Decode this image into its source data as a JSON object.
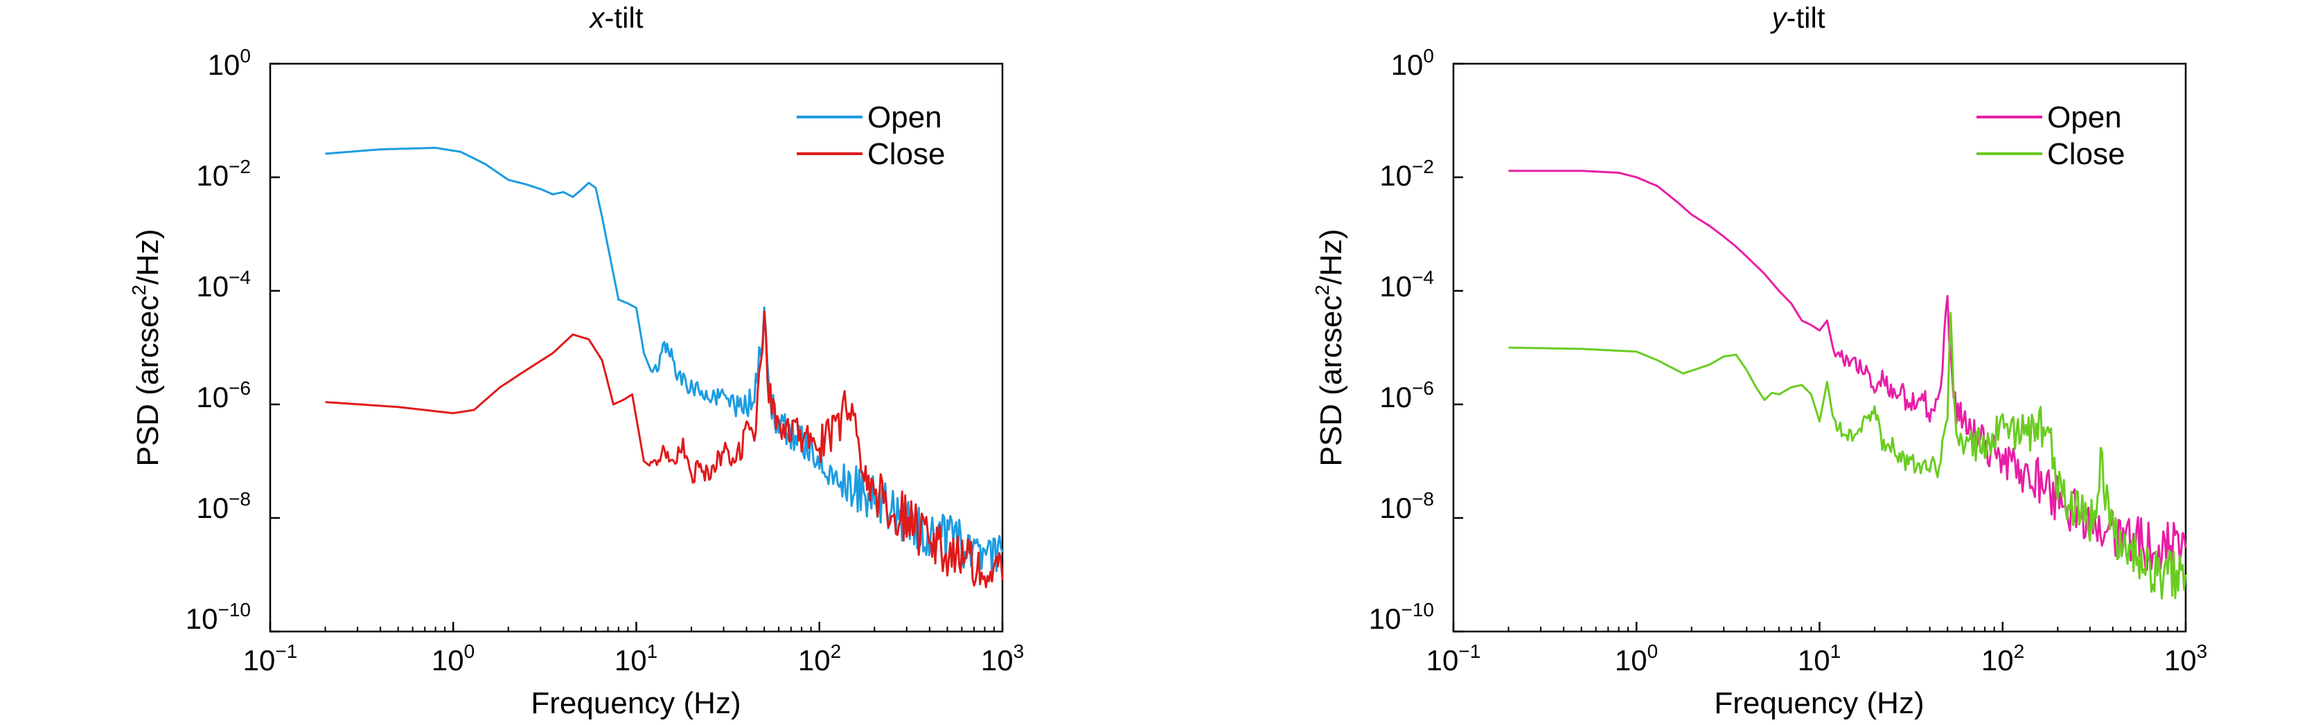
{
  "chart_data": [
    {
      "type": "line",
      "title_var": "x",
      "title_rest": "-tilt",
      "xlabel": "Frequency (Hz)",
      "ylabel_pre": "PSD (arcsec",
      "ylabel_sup": "2",
      "ylabel_post": "/Hz)",
      "xscale": "log",
      "yscale": "log",
      "xlim": [
        0.1,
        1000
      ],
      "ylim": [
        1e-10,
        1
      ],
      "legend_position": "top-right",
      "x_tick_labels": [
        {
          "base": "10",
          "exp": "−1"
        },
        {
          "base": "10",
          "exp": "0"
        },
        {
          "base": "10",
          "exp": "1"
        },
        {
          "base": "10",
          "exp": "2"
        },
        {
          "base": "10",
          "exp": "3"
        }
      ],
      "y_tick_labels": [
        {
          "base": "10",
          "exp": "−10"
        },
        {
          "base": "10",
          "exp": "−8"
        },
        {
          "base": "10",
          "exp": "−6"
        },
        {
          "base": "10",
          "exp": "−4"
        },
        {
          "base": "10",
          "exp": "−2"
        },
        {
          "base": "10",
          "exp": "0"
        }
      ],
      "series": [
        {
          "name": "Open",
          "color": "#1c9ce0",
          "x": [
            0.2,
            0.4,
            0.8,
            1.1,
            1.5,
            2,
            2.5,
            3,
            3.5,
            4,
            4.5,
            5,
            5.5,
            6,
            6.5,
            7,
            8,
            9,
            10,
            11,
            12,
            13,
            14,
            15,
            17,
            20,
            25,
            30,
            35,
            40,
            45,
            50,
            52,
            55,
            60,
            70,
            80,
            100,
            150,
            200,
            300,
            500,
            700,
            1000
          ],
          "y": [
            0.026,
            0.031,
            0.033,
            0.028,
            0.017,
            0.009,
            0.0075,
            0.0062,
            0.005,
            0.0055,
            0.0045,
            0.006,
            0.008,
            0.0065,
            0.002,
            0.0006,
            7e-05,
            6e-05,
            5e-05,
            8e-06,
            4e-06,
            4e-06,
            1e-05,
            1e-05,
            3e-06,
            2e-06,
            1.5e-06,
            1.2e-06,
            1e-06,
            9e-07,
            2e-06,
            4e-05,
            3e-06,
            1e-06,
            4e-07,
            3e-07,
            2e-07,
            1.2e-07,
            4e-08,
            2e-08,
            8e-09,
            4e-09,
            3e-09,
            2.5e-09
          ]
        },
        {
          "name": "Close",
          "color": "#e01a1a",
          "x": [
            0.2,
            0.5,
            1,
            1.3,
            1.8,
            2.5,
            3.5,
            4.5,
            5.5,
            6.5,
            7.5,
            8.5,
            9.5,
            11,
            12,
            14,
            16,
            18,
            20,
            22,
            25,
            30,
            35,
            40,
            45,
            50,
            52,
            55,
            60,
            70,
            80,
            100,
            120,
            140,
            145,
            160,
            200,
            300,
            500,
            700,
            1000
          ],
          "y": [
            1.1e-06,
            9e-07,
            7e-07,
            8e-07,
            2e-06,
            4e-06,
            8e-06,
            1.7e-05,
            1.4e-05,
            6e-06,
            1e-06,
            1.2e-06,
            1.5e-06,
            1e-07,
            8e-08,
            1.5e-07,
            9e-08,
            2e-07,
            5e-08,
            8e-08,
            6e-08,
            1.5e-07,
            1e-07,
            3e-07,
            4e-07,
            4e-05,
            3e-06,
            8e-07,
            5e-07,
            4e-07,
            3e-07,
            2e-07,
            4e-07,
            8e-07,
            1.2e-06,
            2e-07,
            3e-08,
            1e-08,
            2e-09,
            1.5e-09,
            8e-10
          ]
        }
      ]
    },
    {
      "type": "line",
      "title_var": "y",
      "title_rest": "-tilt",
      "xlabel": "Frequency (Hz)",
      "ylabel_pre": "PSD (arcsec",
      "ylabel_sup": "2",
      "ylabel_post": "/Hz)",
      "xscale": "log",
      "yscale": "log",
      "xlim": [
        0.1,
        1000
      ],
      "ylim": [
        1e-10,
        1
      ],
      "legend_position": "top-right",
      "x_tick_labels": [
        {
          "base": "10",
          "exp": "−1"
        },
        {
          "base": "10",
          "exp": "0"
        },
        {
          "base": "10",
          "exp": "1"
        },
        {
          "base": "10",
          "exp": "2"
        },
        {
          "base": "10",
          "exp": "3"
        }
      ],
      "y_tick_labels": [
        {
          "base": "10",
          "exp": "−10"
        },
        {
          "base": "10",
          "exp": "−8"
        },
        {
          "base": "10",
          "exp": "−6"
        },
        {
          "base": "10",
          "exp": "−4"
        },
        {
          "base": "10",
          "exp": "−2"
        },
        {
          "base": "10",
          "exp": "0"
        }
      ],
      "series": [
        {
          "name": "Open",
          "color": "#e81ea6",
          "x": [
            0.2,
            0.5,
            0.8,
            1,
            1.3,
            1.7,
            2,
            2.5,
            3,
            3.5,
            4,
            5,
            6,
            7,
            8,
            9,
            10,
            11,
            12,
            14,
            16,
            18,
            20,
            22,
            25,
            28,
            30,
            35,
            40,
            45,
            50,
            52,
            55,
            60,
            70,
            80,
            100,
            150,
            200,
            300,
            500,
            700,
            1000
          ],
          "y": [
            0.013,
            0.013,
            0.012,
            0.01,
            0.007,
            0.0035,
            0.0022,
            0.0014,
            0.0009,
            0.0006,
            0.0004,
            0.0002,
            0.0001,
            6e-05,
            3e-05,
            2.5e-05,
            2e-05,
            3e-05,
            8e-06,
            6e-06,
            5e-06,
            4e-06,
            2e-06,
            3e-06,
            1.5e-06,
            2e-06,
            1e-06,
            1.5e-06,
            8e-07,
            1e-06,
            6e-05,
            5e-06,
            1e-06,
            5e-07,
            3e-07,
            2e-07,
            1e-07,
            5e-08,
            2e-08,
            8e-09,
            4e-09,
            3e-09,
            3e-09
          ]
        },
        {
          "name": "Close",
          "color": "#6acc22",
          "x": [
            0.2,
            0.5,
            1,
            1.3,
            1.8,
            2.5,
            3,
            3.5,
            4,
            4.5,
            5,
            5.5,
            6,
            7,
            8,
            9,
            10,
            11,
            12,
            14,
            16,
            20,
            22,
            25,
            30,
            35,
            40,
            45,
            50,
            52,
            55,
            60,
            70,
            80,
            100,
            150,
            180,
            200,
            300,
            350,
            400,
            500,
            700,
            1000
          ],
          "y": [
            1e-05,
            9.5e-06,
            8.5e-06,
            6e-06,
            3.5e-06,
            5e-06,
            7e-06,
            7.5e-06,
            4e-06,
            2e-06,
            1.2e-06,
            1.6e-06,
            1.5e-06,
            2e-06,
            2.2e-06,
            1.5e-06,
            5e-07,
            2.5e-06,
            4.5e-07,
            3e-07,
            3e-07,
            8e-07,
            2e-07,
            1.8e-07,
            1e-07,
            8e-08,
            1e-07,
            8e-08,
            1e-06,
            3e-05,
            7e-07,
            2e-07,
            2e-07,
            2e-07,
            4e-07,
            3e-07,
            5e-07,
            3e-08,
            1e-08,
            8e-08,
            5e-09,
            3e-09,
            1e-09,
            1e-09
          ]
        }
      ]
    }
  ]
}
